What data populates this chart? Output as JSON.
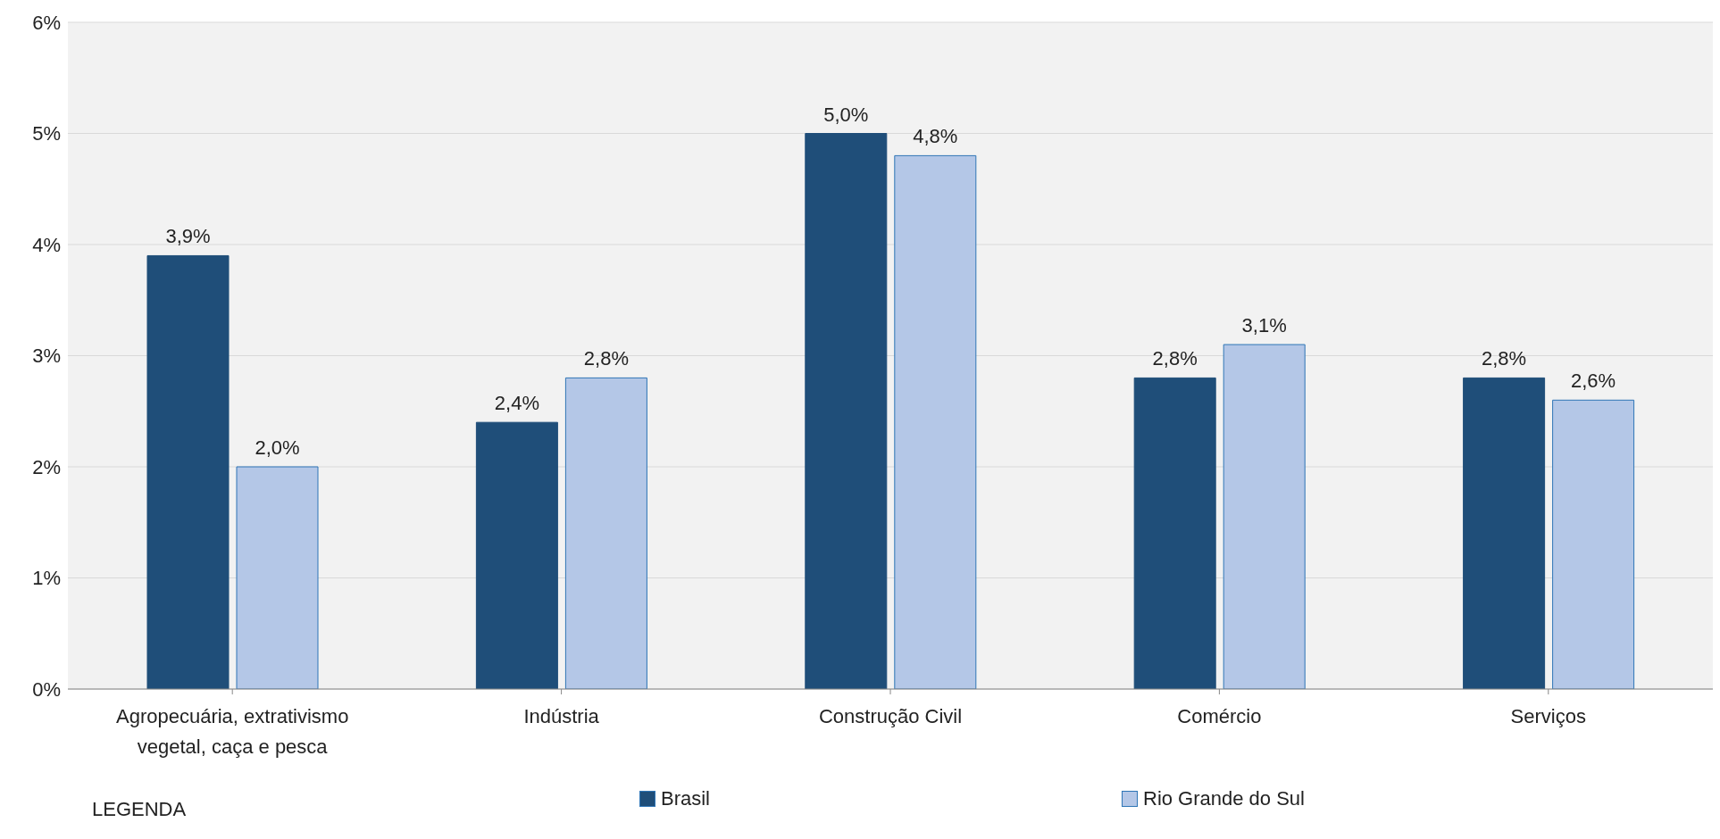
{
  "chart_data": {
    "type": "bar",
    "categories": [
      "Agropecuária, extrativismo vegetal, caça e pesca",
      "Indústria",
      "Construção Civil",
      "Comércio",
      "Serviços"
    ],
    "series": [
      {
        "name": "Brasil",
        "color": "#1f4e79",
        "values": [
          3.9,
          2.4,
          5.0,
          2.8,
          2.8
        ],
        "value_labels": [
          "3,9%",
          "2,4%",
          "5,0%",
          "2,8%",
          "2,8%"
        ]
      },
      {
        "name": "Rio Grande do Sul",
        "color": "#b4c7e7",
        "values": [
          2.0,
          2.8,
          4.8,
          3.1,
          2.6
        ],
        "value_labels": [
          "2,0%",
          "2,8%",
          "4,8%",
          "3,1%",
          "2,6%"
        ]
      }
    ],
    "ylim": [
      0,
      6
    ],
    "yticks": [
      {
        "value": 0,
        "label": "0%"
      },
      {
        "value": 1,
        "label": "1%"
      },
      {
        "value": 2,
        "label": "2%"
      },
      {
        "value": 3,
        "label": "3%"
      },
      {
        "value": 4,
        "label": "4%"
      },
      {
        "value": 5,
        "label": "5%"
      },
      {
        "value": 6,
        "label": "6%"
      }
    ],
    "grid": "y",
    "legend": "bottom",
    "legend_title": "LEGENDA"
  }
}
